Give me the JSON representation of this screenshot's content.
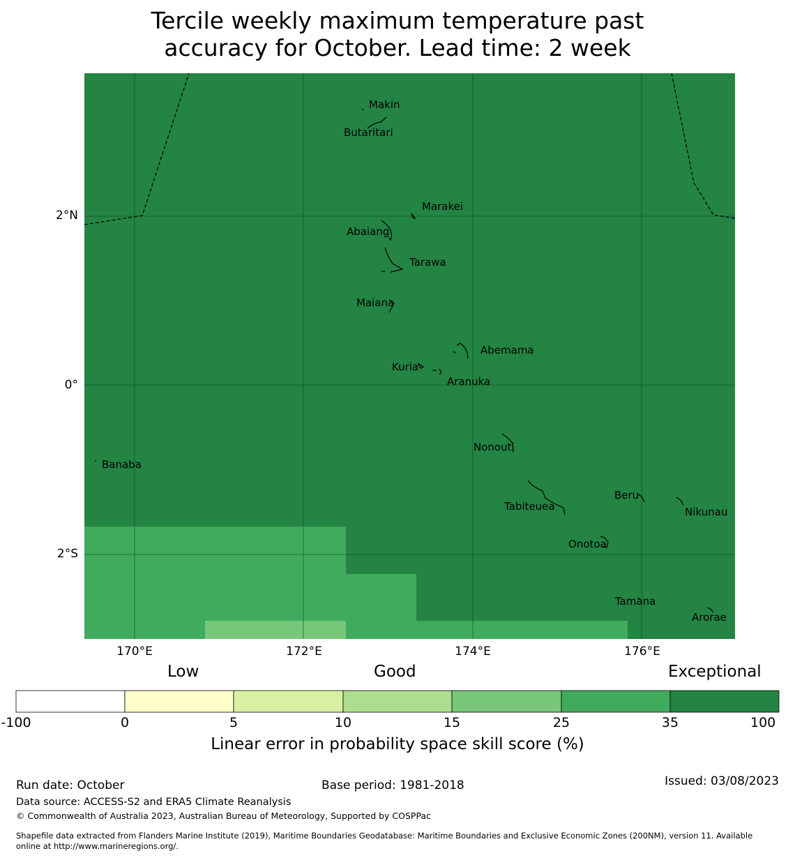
{
  "title": {
    "line1": "Tercile weekly maximum temperature past",
    "line2": "accuracy for October. Lead time: 2 week"
  },
  "map": {
    "lat_labels": [
      "2°N",
      "0°",
      "2°S"
    ],
    "lon_labels": [
      "170°E",
      "172°E",
      "174°E",
      "176°E"
    ],
    "places": [
      "Makin",
      "Butaritari",
      "Marakei",
      "Abaiang",
      "Tarawa",
      "Maiana",
      "Abemama",
      "Kuria",
      "Aranuka",
      "Nonouti",
      "Banaba",
      "Beru",
      "Nikunau",
      "Tabiteuea",
      "Onotoa",
      "Tamana",
      "Arorae"
    ]
  },
  "legend": {
    "categories": [
      "Low",
      "Good",
      "Exceptional"
    ],
    "ticks": [
      "-100",
      "0",
      "5",
      "10",
      "15",
      "25",
      "35",
      "100"
    ],
    "bins": [
      {
        "range": "-100 to 0",
        "color": "#ffffff"
      },
      {
        "range": "0 to 5",
        "color": "#ffffcc"
      },
      {
        "range": "5 to 10",
        "color": "#d9f0a3"
      },
      {
        "range": "10 to 15",
        "color": "#addd8e"
      },
      {
        "range": "15 to 25",
        "color": "#78c679"
      },
      {
        "range": "25 to 35",
        "color": "#41ab5d"
      },
      {
        "range": "35 to 100",
        "color": "#238443"
      }
    ],
    "label": "Linear error in probability space skill score (%)"
  },
  "footer": {
    "run_date": "Run date: October",
    "base_period": "Base period: 1981-2018",
    "issued": "Issued: 03/08/2023",
    "data_source": "Data source: ACCESS-S2 and ERA5 Climate Reanalysis",
    "copyright": "© Commonwealth of Australia 2023, Australian Bureau of Meteorology, Supported by COSPPac",
    "shapefile_line1": "Shapefile data extracted from Flanders Marine Institute (2019), Maritime Boundaries Geodatabase: Maritime Boundaries and Exclusive Economic Zones (200NM), version 11. Available",
    "shapefile_line2": "online at http://www.marineregions.org/."
  }
}
